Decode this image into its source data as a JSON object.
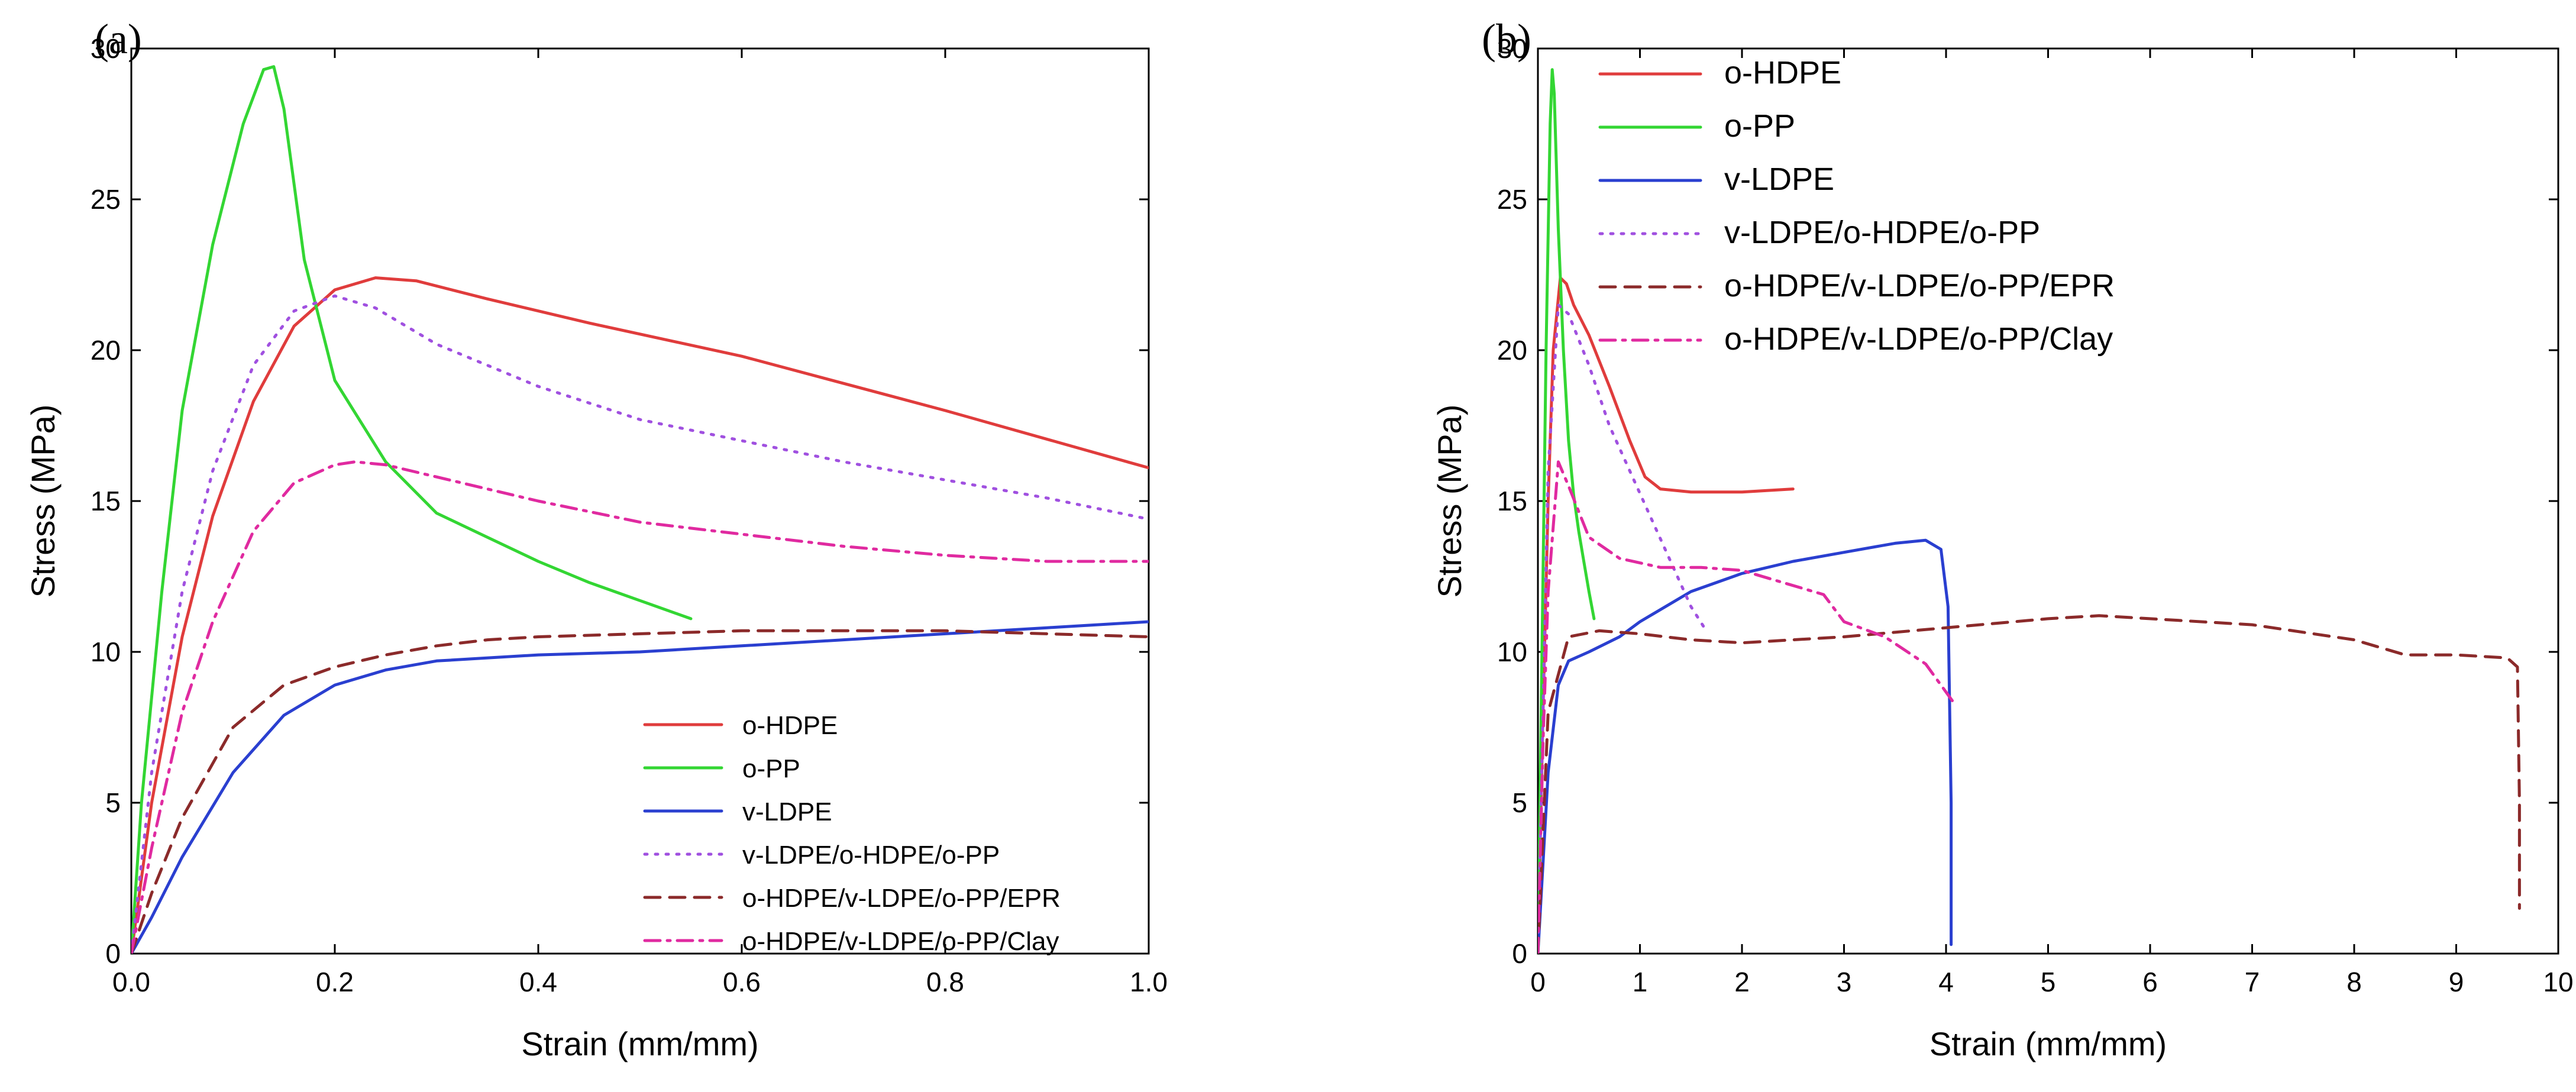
{
  "chart_data": [
    {
      "panel_label": "(a)",
      "type": "line",
      "xlabel": "Strain (mm/mm)",
      "ylabel": "Stress (MPa)",
      "xlim": [
        0,
        1.0
      ],
      "ylim": [
        0,
        30
      ],
      "xticks": [
        0,
        0.2,
        0.4,
        0.6,
        0.8,
        1.0
      ],
      "xtick_labels": [
        "0.0",
        "0.2",
        "0.4",
        "0.6",
        "0.8",
        "1.0"
      ],
      "yticks": [
        0,
        5,
        10,
        15,
        20,
        25,
        30
      ],
      "ytick_labels": [
        "0",
        "5",
        "10",
        "15",
        "20",
        "25",
        "30"
      ],
      "legend_position": "bottom-right",
      "series": [
        {
          "name": "o-HDPE",
          "color": "#e03c3c",
          "dash": "solid",
          "x": [
            0,
            0.02,
            0.05,
            0.08,
            0.12,
            0.16,
            0.2,
            0.24,
            0.28,
            0.35,
            0.45,
            0.6,
            0.8,
            1.0
          ],
          "y": [
            0,
            5,
            10.5,
            14.5,
            18.3,
            20.8,
            22.0,
            22.4,
            22.3,
            21.7,
            20.9,
            19.8,
            18.0,
            16.1
          ]
        },
        {
          "name": "o-PP",
          "color": "#33d633",
          "dash": "solid",
          "x": [
            0,
            0.01,
            0.03,
            0.05,
            0.08,
            0.11,
            0.13,
            0.14,
            0.15,
            0.17,
            0.2,
            0.25,
            0.3,
            0.35,
            0.4,
            0.45,
            0.5,
            0.55
          ],
          "y": [
            0,
            5,
            12,
            18,
            23.5,
            27.5,
            29.3,
            29.4,
            28,
            23,
            19,
            16.3,
            14.6,
            13.8,
            13.0,
            12.3,
            11.7,
            11.1
          ]
        },
        {
          "name": "v-LDPE",
          "color": "#2a3fd0",
          "dash": "solid",
          "x": [
            0,
            0.02,
            0.05,
            0.1,
            0.15,
            0.2,
            0.25,
            0.3,
            0.4,
            0.5,
            0.6,
            0.7,
            0.8,
            0.9,
            1.0
          ],
          "y": [
            0,
            1.2,
            3.2,
            6.0,
            7.9,
            8.9,
            9.4,
            9.7,
            9.9,
            10.0,
            10.2,
            10.4,
            10.6,
            10.8,
            11.0
          ]
        },
        {
          "name": "v-LDPE/o-HDPE/o-PP",
          "color": "#a050e0",
          "dash": "dot",
          "x": [
            0,
            0.02,
            0.05,
            0.08,
            0.12,
            0.16,
            0.2,
            0.24,
            0.3,
            0.4,
            0.5,
            0.6,
            0.7,
            0.8,
            0.9,
            1.0
          ],
          "y": [
            0,
            6,
            12,
            16,
            19.5,
            21.3,
            21.8,
            21.4,
            20.2,
            18.8,
            17.7,
            17.0,
            16.3,
            15.7,
            15.1,
            14.4
          ]
        },
        {
          "name": "o-HDPE/v-LDPE/o-PP/EPR",
          "color": "#8b2a2a",
          "dash": "dash",
          "x": [
            0,
            0.02,
            0.05,
            0.1,
            0.15,
            0.2,
            0.25,
            0.3,
            0.35,
            0.4,
            0.5,
            0.6,
            0.7,
            0.8,
            0.9,
            1.0
          ],
          "y": [
            0,
            2,
            4.5,
            7.5,
            8.9,
            9.5,
            9.9,
            10.2,
            10.4,
            10.5,
            10.6,
            10.7,
            10.7,
            10.7,
            10.6,
            10.5
          ]
        },
        {
          "name": "o-HDPE/v-LDPE/o-PP/Clay",
          "color": "#e02aa0",
          "dash": "dashdot",
          "x": [
            0,
            0.02,
            0.05,
            0.08,
            0.12,
            0.16,
            0.2,
            0.22,
            0.25,
            0.3,
            0.4,
            0.5,
            0.6,
            0.7,
            0.8,
            0.9,
            1.0
          ],
          "y": [
            0,
            3.5,
            8,
            11,
            14,
            15.6,
            16.2,
            16.3,
            16.2,
            15.8,
            15.0,
            14.3,
            13.9,
            13.5,
            13.2,
            13.0,
            13.0
          ]
        }
      ]
    },
    {
      "panel_label": "(b)",
      "type": "line",
      "xlabel": "Strain (mm/mm)",
      "ylabel": "Stress (MPa)",
      "xlim": [
        0,
        10
      ],
      "ylim": [
        0,
        30
      ],
      "xticks": [
        0,
        1,
        2,
        3,
        4,
        5,
        6,
        7,
        8,
        9,
        10
      ],
      "xtick_labels": [
        "0",
        "1",
        "2",
        "3",
        "4",
        "5",
        "6",
        "7",
        "8",
        "9",
        "10"
      ],
      "yticks": [
        0,
        5,
        10,
        15,
        20,
        25,
        30
      ],
      "ytick_labels": [
        "0",
        "5",
        "10",
        "15",
        "20",
        "25",
        "30"
      ],
      "legend_position": "top",
      "series": [
        {
          "name": "o-HDPE",
          "color": "#e03c3c",
          "dash": "solid",
          "x": [
            0,
            0.05,
            0.1,
            0.15,
            0.22,
            0.28,
            0.35,
            0.5,
            0.7,
            0.9,
            1.05,
            1.2,
            1.5,
            2.0,
            2.5
          ],
          "y": [
            0,
            8,
            15,
            20,
            22.4,
            22.2,
            21.5,
            20.5,
            18.8,
            17.0,
            15.8,
            15.4,
            15.3,
            15.3,
            15.4
          ]
        },
        {
          "name": "o-PP",
          "color": "#33d633",
          "dash": "solid",
          "x": [
            0,
            0.04,
            0.08,
            0.12,
            0.14,
            0.16,
            0.2,
            0.25,
            0.3,
            0.35,
            0.4,
            0.45,
            0.5,
            0.55
          ],
          "y": [
            0,
            10,
            20,
            27.5,
            29.3,
            28.5,
            24,
            20,
            17,
            15.2,
            14,
            13,
            12,
            11.1
          ]
        },
        {
          "name": "v-LDPE",
          "color": "#2a3fd0",
          "dash": "solid",
          "x": [
            0,
            0.1,
            0.2,
            0.3,
            0.5,
            0.8,
            1.0,
            1.5,
            2.0,
            2.5,
            3.0,
            3.5,
            3.8,
            3.95,
            4.02,
            4.05,
            4.05
          ],
          "y": [
            0,
            6,
            8.9,
            9.7,
            10.0,
            10.5,
            11.0,
            12.0,
            12.6,
            13.0,
            13.3,
            13.6,
            13.7,
            13.4,
            11.5,
            5,
            0.3
          ]
        },
        {
          "name": "v-LDPE/o-HDPE/o-PP",
          "color": "#a050e0",
          "dash": "dot",
          "x": [
            0,
            0.05,
            0.1,
            0.2,
            0.3,
            0.5,
            0.7,
            0.9,
            1.1,
            1.3,
            1.5,
            1.65
          ],
          "y": [
            0,
            8,
            16,
            21.5,
            21.2,
            19.5,
            17.5,
            16,
            14.5,
            13,
            11.5,
            10.7
          ]
        },
        {
          "name": "o-HDPE/v-LDPE/o-PP/EPR",
          "color": "#8b2a2a",
          "dash": "dash",
          "x": [
            0,
            0.1,
            0.3,
            0.6,
            1,
            1.5,
            2,
            3,
            4,
            5,
            5.5,
            6,
            7,
            8,
            8.5,
            9,
            9.5,
            9.6,
            9.62,
            9.62
          ],
          "y": [
            0,
            8,
            10.5,
            10.7,
            10.6,
            10.4,
            10.3,
            10.5,
            10.8,
            11.1,
            11.2,
            11.1,
            10.9,
            10.4,
            9.9,
            9.9,
            9.8,
            9.5,
            5,
            1.5
          ]
        },
        {
          "name": "o-HDPE/v-LDPE/o-PP/Clay",
          "color": "#e02aa0",
          "dash": "dashdot",
          "x": [
            0,
            0.05,
            0.1,
            0.2,
            0.3,
            0.5,
            0.8,
            1.2,
            1.6,
            2.0,
            2.4,
            2.8,
            3.0,
            3.4,
            3.8,
            4.1
          ],
          "y": [
            0,
            7,
            12,
            16.3,
            15.5,
            13.8,
            13.1,
            12.8,
            12.8,
            12.7,
            12.3,
            11.9,
            11.0,
            10.5,
            9.6,
            8.2
          ]
        }
      ]
    }
  ]
}
